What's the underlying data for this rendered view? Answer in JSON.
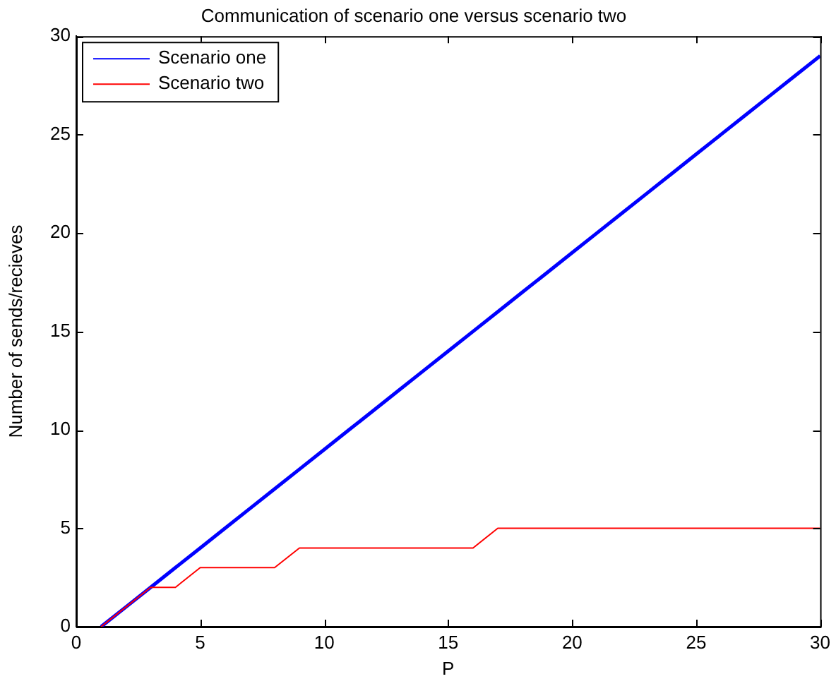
{
  "chart_data": {
    "type": "line",
    "title": "Communication of scenario one versus scenario two",
    "xlabel": "P",
    "ylabel": "Number of sends/recieves",
    "x": [
      1,
      2,
      3,
      4,
      5,
      6,
      7,
      8,
      9,
      10,
      11,
      12,
      13,
      14,
      15,
      16,
      17,
      18,
      19,
      20,
      21,
      22,
      23,
      24,
      25,
      26,
      27,
      28,
      29,
      30
    ],
    "series": [
      {
        "name": "Scenario one",
        "color": "#0000ff",
        "values": [
          0,
          1,
          2,
          3,
          4,
          5,
          6,
          7,
          8,
          9,
          10,
          11,
          12,
          13,
          14,
          15,
          16,
          17,
          18,
          19,
          20,
          21,
          22,
          23,
          24,
          25,
          26,
          27,
          28,
          29
        ]
      },
      {
        "name": "Scenario two",
        "color": "#ff0000",
        "values": [
          0,
          1,
          2,
          2,
          3,
          3,
          3,
          3,
          4,
          4,
          4,
          4,
          4,
          4,
          4,
          4,
          5,
          5,
          5,
          5,
          5,
          5,
          5,
          5,
          5,
          5,
          5,
          5,
          5,
          5
        ]
      }
    ],
    "xlim": [
      0,
      30
    ],
    "xticks": [
      0,
      5,
      10,
      15,
      20,
      25,
      30
    ],
    "ylim": [
      0,
      30
    ],
    "yticks": [
      0,
      5,
      10,
      15,
      20,
      25,
      30
    ],
    "grid": false,
    "legend": "top left",
    "marker": "none",
    "line_style": "solid"
  }
}
